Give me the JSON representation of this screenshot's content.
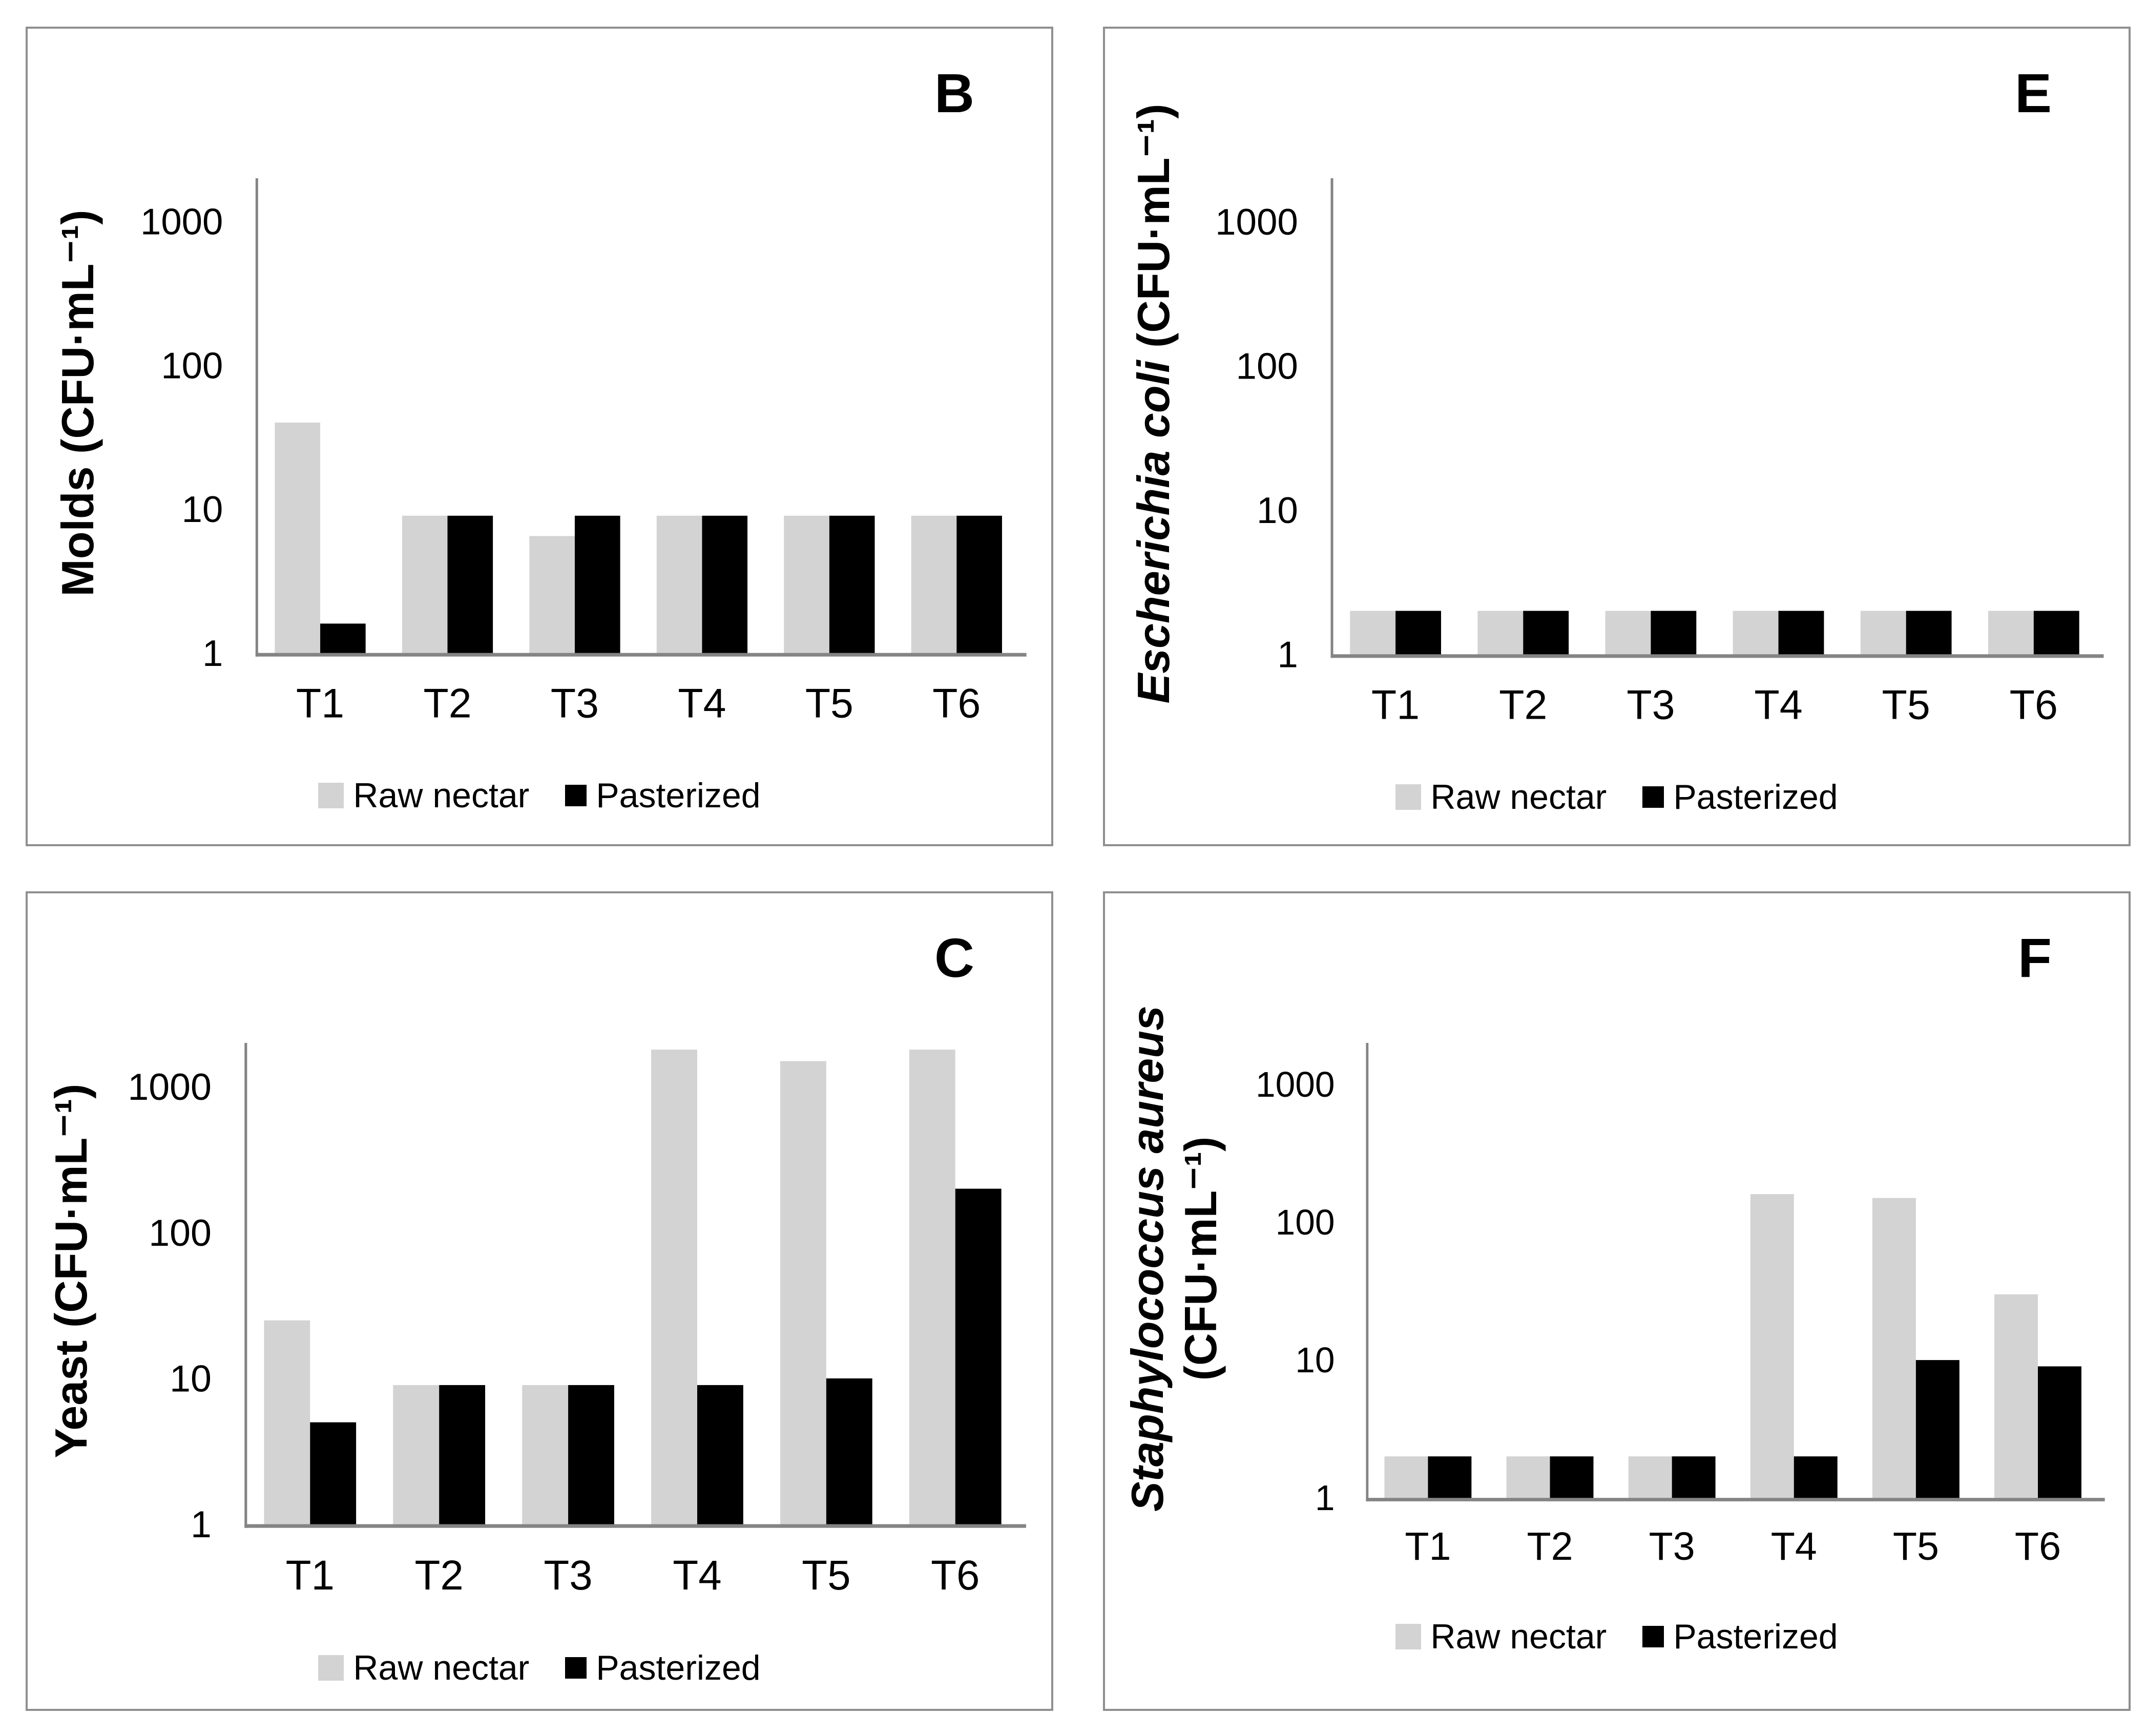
{
  "figure": {
    "description": "Grouped bar charts of microbial counts in raw vs pasteurized nectar at sampling times T1-T6",
    "background": "#ffffff"
  },
  "style": {
    "panel_border_color": "#8f8f8f",
    "axis_color": "#848484",
    "bar_raw_color": "#d3d3d3",
    "bar_pasteurized_color": "#000000",
    "text_color": "#000000"
  },
  "legend": {
    "raw_label": "Raw nectar",
    "pasteurized_label": "Pasterized"
  },
  "axis": {
    "scale": "log",
    "y_ticks": [
      1000,
      100,
      10,
      1
    ],
    "x_categories": [
      "T1",
      "T2",
      "T3",
      "T4",
      "T5",
      "T6"
    ]
  },
  "chart_data": [
    {
      "type": "bar",
      "panel_letter": "B",
      "ylabel": "Molds (CFU·mL⁻¹)",
      "ylabel_lines": [
        [
          {
            "text": "Molds (CFU·mL⁻¹)",
            "italic": false
          }
        ]
      ],
      "yscale": "log",
      "ylim": [
        1,
        2000
      ],
      "y_ticks": [
        1000,
        100,
        10,
        1
      ],
      "categories": [
        "T1",
        "T2",
        "T3",
        "T4",
        "T5",
        "T6"
      ],
      "series": [
        {
          "name": "Raw nectar",
          "values": [
            40,
            9,
            6.5,
            9,
            9,
            9
          ]
        },
        {
          "name": "Pasterized",
          "values": [
            1.6,
            9,
            9,
            9,
            9,
            9
          ]
        }
      ],
      "legend_position": "bottom",
      "layout": {
        "grid_position": "top-left",
        "ylabel_width": 195
      }
    },
    {
      "type": "bar",
      "panel_letter": "E",
      "ylabel": "Escherichia coli (CFU·mL⁻¹)",
      "ylabel_lines": [
        [
          {
            "text": "Escherichia coli",
            "italic": true
          },
          {
            "text": " (CFU·mL⁻¹)",
            "italic": false
          }
        ]
      ],
      "yscale": "log",
      "ylim": [
        1,
        2000
      ],
      "y_ticks": [
        1000,
        100,
        10,
        1
      ],
      "categories": [
        "T1",
        "T2",
        "T3",
        "T4",
        "T5",
        "T6"
      ],
      "series": [
        {
          "name": "Raw nectar",
          "values": [
            2,
            2,
            2,
            2,
            2,
            2
          ]
        },
        {
          "name": "Pasterized",
          "values": [
            2,
            2,
            2,
            2,
            2,
            2
          ]
        }
      ],
      "legend_position": "bottom",
      "layout": {
        "grid_position": "top-right",
        "ylabel_width": 190
      }
    },
    {
      "type": "bar",
      "panel_letter": "C",
      "ylabel": "Yeast (CFU·mL⁻¹)",
      "ylabel_lines": [
        [
          {
            "text": "Yeast (CFU·mL⁻¹)",
            "italic": false
          }
        ]
      ],
      "yscale": "log",
      "ylim": [
        1,
        2000
      ],
      "y_ticks": [
        1000,
        100,
        10,
        1
      ],
      "categories": [
        "T1",
        "T2",
        "T3",
        "T4",
        "T5",
        "T6"
      ],
      "series": [
        {
          "name": "Raw nectar",
          "values": [
            25,
            9,
            9,
            1800,
            1500,
            1800
          ]
        },
        {
          "name": "Pasterized",
          "values": [
            5,
            9,
            9,
            9,
            10,
            200
          ]
        }
      ],
      "legend_position": "bottom",
      "layout": {
        "grid_position": "bottom-left",
        "ylabel_width": 170
      }
    },
    {
      "type": "bar",
      "panel_letter": "F",
      "ylabel": "Staphylococcus aureus (CFU·mL⁻¹)",
      "ylabel_lines": [
        [
          {
            "text": "Staphylococcus aureus",
            "italic": true
          }
        ],
        [
          {
            "text": "(CFU·mL⁻¹)",
            "italic": false
          }
        ]
      ],
      "yscale": "log",
      "ylim": [
        1,
        2000
      ],
      "y_ticks": [
        1000,
        100,
        10,
        1
      ],
      "categories": [
        "T1",
        "T2",
        "T3",
        "T4",
        "T5",
        "T6"
      ],
      "series": [
        {
          "name": "Raw nectar",
          "values": [
            2,
            2,
            2,
            160,
            150,
            30
          ]
        },
        {
          "name": "Pasterized",
          "values": [
            2,
            2,
            2,
            2,
            10,
            9
          ]
        }
      ],
      "legend_position": "bottom",
      "layout": {
        "grid_position": "bottom-right",
        "ylabel_width": 270
      }
    }
  ]
}
